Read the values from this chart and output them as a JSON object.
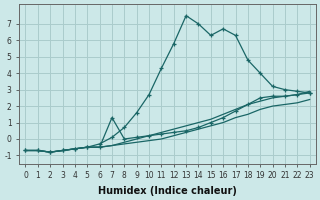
{
  "xlabel": "Humidex (Indice chaleur)",
  "xlim": [
    -0.5,
    23.5
  ],
  "ylim": [
    -1.5,
    8.2
  ],
  "background_color": "#cce8e8",
  "grid_color": "#aacccc",
  "line_color": "#1a6666",
  "lines": [
    {
      "x": [
        0,
        1,
        2,
        3,
        4,
        5,
        6,
        7,
        8,
        9,
        10,
        11,
        12,
        13,
        14,
        15,
        16,
        17,
        18,
        19,
        20,
        21,
        22,
        23
      ],
      "y": [
        -0.7,
        -0.7,
        -0.8,
        -0.7,
        -0.6,
        -0.5,
        -0.3,
        0.1,
        0.7,
        1.6,
        2.7,
        4.3,
        5.8,
        7.5,
        7.0,
        6.3,
        6.7,
        6.3,
        4.8,
        4.0,
        3.2,
        3.0,
        2.9,
        2.8
      ],
      "marker": "+"
    },
    {
      "x": [
        0,
        1,
        2,
        3,
        4,
        5,
        6,
        7,
        8,
        9,
        10,
        11,
        12,
        13,
        14,
        15,
        16,
        17,
        18,
        19,
        20,
        21,
        22,
        23
      ],
      "y": [
        -0.7,
        -0.7,
        -0.8,
        -0.7,
        -0.6,
        -0.5,
        -0.5,
        1.3,
        0.0,
        0.1,
        0.2,
        0.3,
        0.4,
        0.5,
        0.7,
        1.0,
        1.3,
        1.7,
        2.1,
        2.5,
        2.6,
        2.6,
        2.7,
        2.8
      ],
      "marker": "+"
    },
    {
      "x": [
        0,
        1,
        2,
        3,
        4,
        5,
        6,
        7,
        8,
        9,
        10,
        11,
        12,
        13,
        14,
        15,
        16,
        17,
        18,
        19,
        20,
        21,
        22,
        23
      ],
      "y": [
        -0.7,
        -0.7,
        -0.8,
        -0.7,
        -0.6,
        -0.5,
        -0.5,
        -0.4,
        -0.3,
        -0.2,
        -0.1,
        0.0,
        0.2,
        0.4,
        0.6,
        0.8,
        1.0,
        1.3,
        1.5,
        1.8,
        2.0,
        2.1,
        2.2,
        2.4
      ],
      "marker": null
    },
    {
      "x": [
        0,
        1,
        2,
        3,
        4,
        5,
        6,
        7,
        8,
        9,
        10,
        11,
        12,
        13,
        14,
        15,
        16,
        17,
        18,
        19,
        20,
        21,
        22,
        23
      ],
      "y": [
        -0.7,
        -0.7,
        -0.8,
        -0.7,
        -0.6,
        -0.5,
        -0.5,
        -0.4,
        -0.2,
        0.0,
        0.2,
        0.4,
        0.6,
        0.8,
        1.0,
        1.2,
        1.5,
        1.8,
        2.1,
        2.3,
        2.5,
        2.6,
        2.7,
        2.9
      ],
      "marker": null
    }
  ],
  "yticks": [
    -1,
    0,
    1,
    2,
    3,
    4,
    5,
    6,
    7
  ],
  "xticks": [
    0,
    1,
    2,
    3,
    4,
    5,
    6,
    7,
    8,
    9,
    10,
    11,
    12,
    13,
    14,
    15,
    16,
    17,
    18,
    19,
    20,
    21,
    22,
    23
  ],
  "tick_fontsize": 5.5,
  "label_fontsize": 7
}
